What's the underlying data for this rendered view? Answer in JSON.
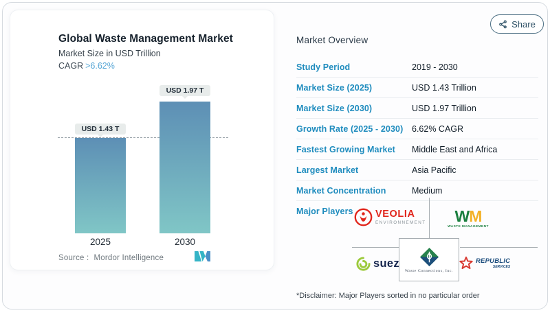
{
  "share": {
    "label": "Share"
  },
  "chart_card": {
    "title": "Global Waste Management Market",
    "subtitle": "Market Size in USD Trillion",
    "cagr_label": "CAGR",
    "cagr_value": ">6.62%",
    "source_label": "Source :",
    "source_value": "Mordor Intelligence"
  },
  "chart_data": {
    "type": "bar",
    "title": "Global Waste Management Market",
    "subtitle": "Market Size in USD Trillion",
    "categories": [
      "2025",
      "2030"
    ],
    "values": [
      1.43,
      1.97
    ],
    "value_labels": [
      "USD 1.43 T",
      "USD 1.97 T"
    ],
    "unit": "USD Trillion",
    "cagr": "6.62%",
    "xlabel": "",
    "ylabel": "Market Size in USD Trillion",
    "ylim": [
      0,
      2.33
    ],
    "reference_line": 1.43,
    "grid": false,
    "legend": "none",
    "bar_gradient": [
      "#5d8fb5",
      "#80c6c6"
    ],
    "source": "Mordor Intelligence"
  },
  "overview": {
    "title": "Market Overview",
    "rows": [
      {
        "label": "Study Period",
        "value": "2019 - 2030"
      },
      {
        "label": "Market Size (2025)",
        "value": "USD 1.43 Trillion"
      },
      {
        "label": "Market Size (2030)",
        "value": "USD 1.97 Trillion"
      },
      {
        "label": "Growth Rate (2025 - 2030)",
        "value": "6.62% CAGR"
      },
      {
        "label": "Fastest Growing Market",
        "value": "Middle East and Africa"
      },
      {
        "label": "Largest Market",
        "value": "Asia Pacific"
      },
      {
        "label": "Market Concentration",
        "value": "Medium"
      }
    ],
    "major_players_label": "Major Players",
    "players": {
      "veolia": {
        "name": "Veolia Environnement",
        "line1": "VEOLIA",
        "line2": "ENVIRONNEMENT"
      },
      "wm": {
        "name": "Waste Management",
        "w": "W",
        "m": "M",
        "line2": "WASTE MANAGEMENT"
      },
      "suez": {
        "name": "Suez",
        "line1": "suez"
      },
      "wc": {
        "name": "Waste Connections, Inc.",
        "line1": "Waste Connections, Inc."
      },
      "republic": {
        "name": "Republic Services",
        "line1": "REPUBLIC",
        "line2": "SERVICES"
      }
    },
    "disclaimer": "*Disclaimer: Major Players sorted in no particular order"
  },
  "colors": {
    "label_blue": "#1f8cbe",
    "cagr_blue": "#58a7d6",
    "bar_top": "#5d8fb5",
    "bar_bottom": "#80c6c6",
    "veolia_red": "#e1251b",
    "wm_green": "#1b7f3f",
    "wm_yellow": "#f3b229",
    "suez_lime": "#9cca3b",
    "suez_navy": "#15254d",
    "wc_green": "#27824d",
    "wc_navy": "#1d4f7c",
    "republic_red": "#d93a32",
    "republic_navy": "#1c4d7d",
    "mordor_teal": "#35b4c6",
    "mordor_blue": "#4a8fc7"
  }
}
